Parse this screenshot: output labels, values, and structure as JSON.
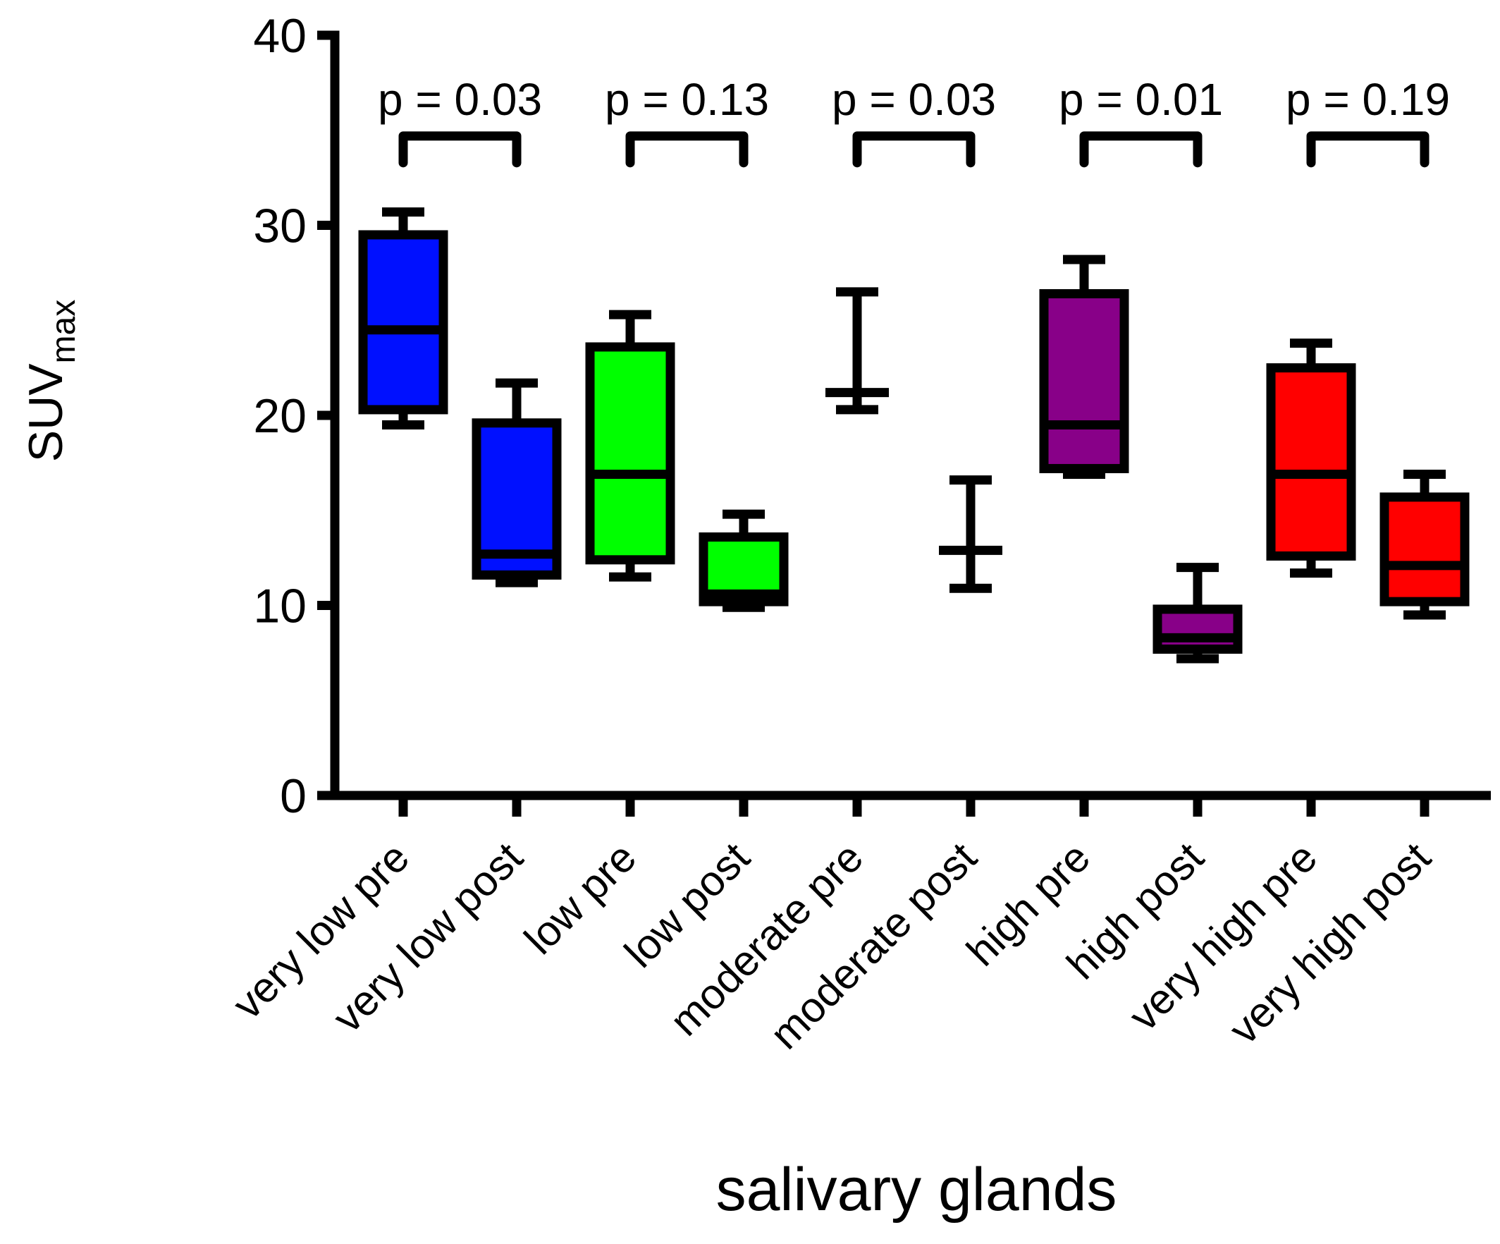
{
  "chart_data": {
    "type": "box",
    "title": "",
    "xlabel": "salivary glands",
    "ylabel_main": "SUV",
    "ylabel_sub": "max",
    "ylim": [
      0,
      40
    ],
    "yticks": [
      0,
      10,
      20,
      30,
      40
    ],
    "ytick_labels": [
      "0",
      "10",
      "20",
      "30",
      "40"
    ],
    "grid": false,
    "categories": [
      "very low pre",
      "very low post",
      "low pre",
      "low post",
      "moderate pre",
      "moderate post",
      "high pre",
      "high post",
      "very high pre",
      "very high post"
    ],
    "boxes": [
      {
        "name": "very low pre",
        "min": 19.5,
        "q1": 20.3,
        "median": 24.5,
        "q3": 29.5,
        "max": 30.7,
        "color": "#0010FF"
      },
      {
        "name": "very low post",
        "min": 11.2,
        "q1": 11.6,
        "median": 12.7,
        "q3": 19.6,
        "max": 21.7,
        "color": "#0010FF"
      },
      {
        "name": "low pre",
        "min": 11.5,
        "q1": 12.4,
        "median": 16.9,
        "q3": 23.6,
        "max": 25.3,
        "color": "#00FF00"
      },
      {
        "name": "low post",
        "min": 9.9,
        "q1": 10.2,
        "median": 10.6,
        "q3": 13.6,
        "max": 14.8,
        "color": "#00FF00"
      },
      {
        "name": "moderate pre",
        "min": 20.3,
        "q1": 21.2,
        "median": 21.2,
        "q3": 21.2,
        "max": 26.5,
        "color": "#000000",
        "whiskers_only": true
      },
      {
        "name": "moderate post",
        "min": 10.9,
        "q1": 12.9,
        "median": 12.9,
        "q3": 12.9,
        "max": 16.6,
        "color": "#000000",
        "whiskers_only": true
      },
      {
        "name": "high pre",
        "min": 16.9,
        "q1": 17.2,
        "median": 19.5,
        "q3": 26.4,
        "max": 28.2,
        "color": "#880088"
      },
      {
        "name": "high post",
        "min": 7.2,
        "q1": 7.7,
        "median": 8.3,
        "q3": 9.8,
        "max": 12.0,
        "color": "#880088"
      },
      {
        "name": "very high pre",
        "min": 11.7,
        "q1": 12.6,
        "median": 16.9,
        "q3": 22.5,
        "max": 23.8,
        "color": "#FF0000"
      },
      {
        "name": "very high post",
        "min": 9.5,
        "q1": 10.2,
        "median": 12.1,
        "q3": 15.7,
        "max": 16.9,
        "color": "#FF0000"
      }
    ],
    "comparisons": [
      {
        "pair": [
          "very low pre",
          "very low post"
        ],
        "label": "p = 0.03"
      },
      {
        "pair": [
          "low pre",
          "low post"
        ],
        "label": "p = 0.13"
      },
      {
        "pair": [
          "moderate pre",
          "moderate post"
        ],
        "label": "p = 0.03"
      },
      {
        "pair": [
          "high pre",
          "high post"
        ],
        "label": "p = 0.01"
      },
      {
        "pair": [
          "very high pre",
          "very high post"
        ],
        "label": "p = 0.19"
      }
    ],
    "bracket_level": 34.7,
    "bracket_drop": 34.2
  }
}
